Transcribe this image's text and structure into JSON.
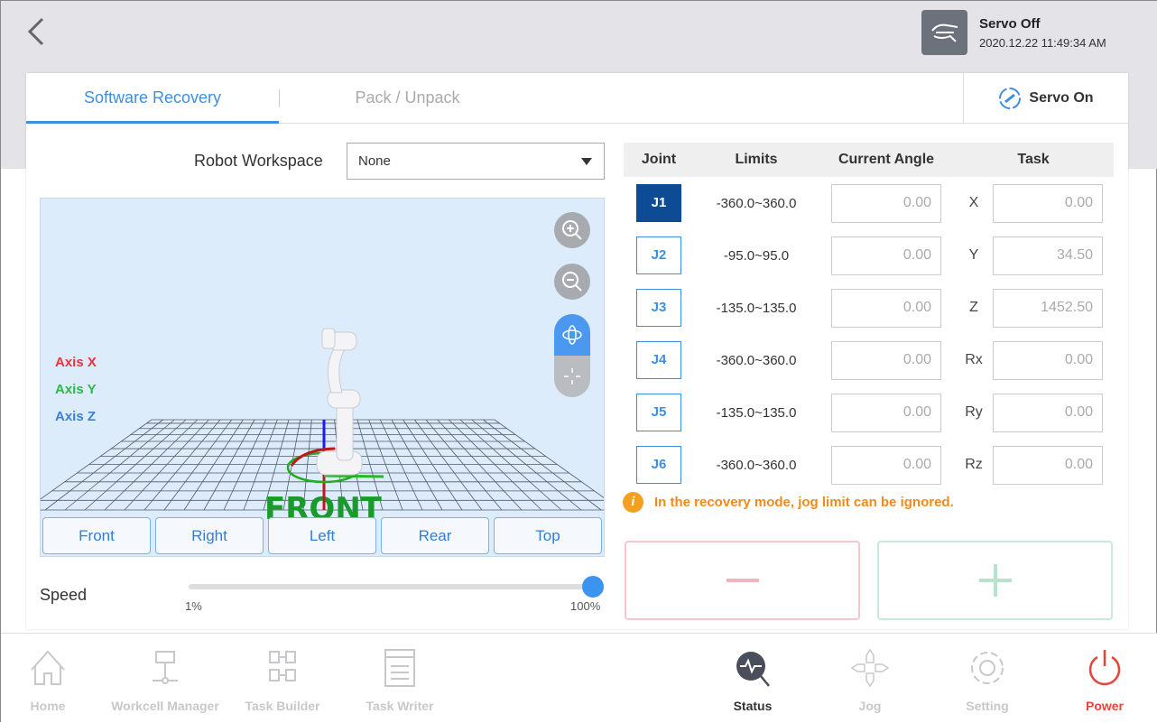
{
  "header": {
    "servo_status": "Servo Off",
    "datetime": "2020.12.22 11:49:34 AM",
    "servo_icon": "hand-icon",
    "back_icon": "chevron-left-icon"
  },
  "tabs": [
    {
      "label": "Software Recovery",
      "active": true
    },
    {
      "label": "Pack / Unpack",
      "active": false
    }
  ],
  "servo_on_label": "Servo On",
  "workspace": {
    "label": "Robot Workspace",
    "value": "None"
  },
  "viewport": {
    "axes": [
      {
        "label": "Axis X",
        "color": "#e8343e"
      },
      {
        "label": "Axis Y",
        "color": "#2cb84a"
      },
      {
        "label": "Axis Z",
        "color": "#3d7fd6"
      }
    ],
    "floor_label": "FRONT",
    "views": [
      "Front",
      "Right",
      "Left",
      "Rear",
      "Top"
    ],
    "mode": "rotate"
  },
  "speed": {
    "label": "Speed",
    "min_label": "1%",
    "max_label": "100%",
    "value_percent": 100
  },
  "table": {
    "headers": [
      "Joint",
      "Limits",
      "Current Angle",
      "Task"
    ],
    "rows": [
      {
        "joint": "J1",
        "limits": "-360.0~360.0",
        "angle": "0.00",
        "task_label": "X",
        "task_value": "0.00",
        "active": true
      },
      {
        "joint": "J2",
        "limits": "-95.0~95.0",
        "angle": "0.00",
        "task_label": "Y",
        "task_value": "34.50"
      },
      {
        "joint": "J3",
        "limits": "-135.0~135.0",
        "angle": "0.00",
        "task_label": "Z",
        "task_value": "1452.50"
      },
      {
        "joint": "J4",
        "limits": "-360.0~360.0",
        "angle": "0.00",
        "task_label": "Rx",
        "task_value": "0.00"
      },
      {
        "joint": "J5",
        "limits": "-135.0~135.0",
        "angle": "0.00",
        "task_label": "Ry",
        "task_value": "0.00"
      },
      {
        "joint": "J6",
        "limits": "-360.0~360.0",
        "angle": "0.00",
        "task_label": "Rz",
        "task_value": "0.00"
      }
    ]
  },
  "warning": "In the recovery mode, jog limit can be ignored.",
  "nav": [
    {
      "label": "Home"
    },
    {
      "label": "Workcell Manager"
    },
    {
      "label": "Task Builder"
    },
    {
      "label": "Task Writer"
    },
    {
      "label": "Status",
      "active": true
    },
    {
      "label": "Jog"
    },
    {
      "label": "Setting"
    },
    {
      "label": "Power",
      "color": "#e8443a"
    }
  ],
  "colors": {
    "accent": "#3d8fe0",
    "active_joint": "#0d4c95",
    "warning": "#f08a1c",
    "power": "#e8443a"
  }
}
